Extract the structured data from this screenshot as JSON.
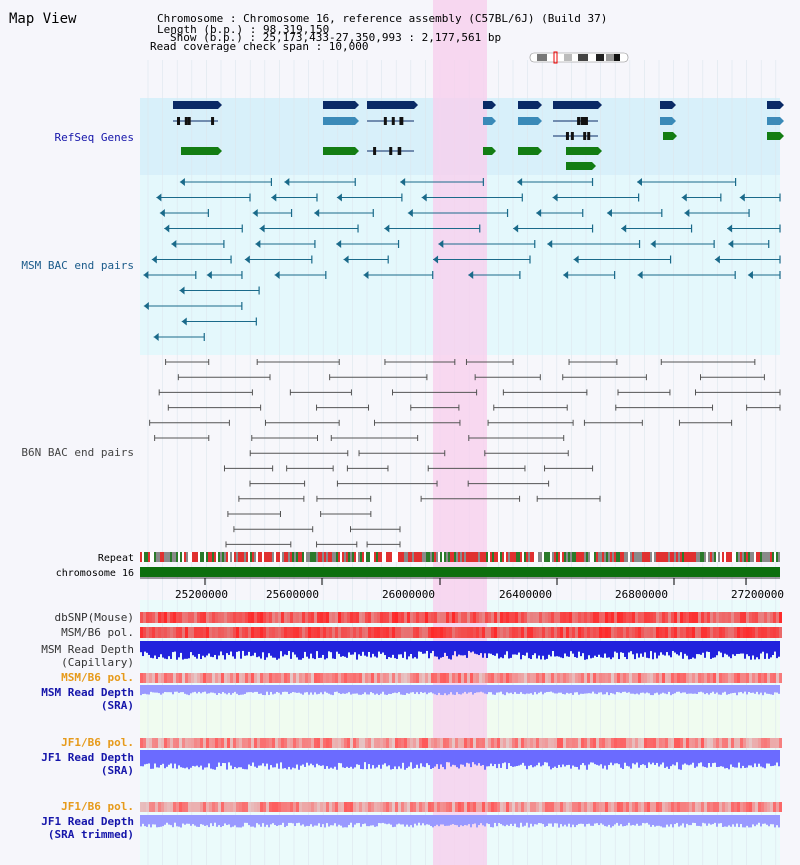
{
  "header": {
    "title": "Map View",
    "chromosome_line": "Chromosome   : Chromosome 16, reference assembly (C57BL/6J) (Build 37)",
    "length_line": "Length (b.p.) : 98,319,150",
    "show_line": "Show (b.p.) : 25,173,433-27,350,993 : 2,177,561 bp",
    "coverage_line": "Read coverage check span : 10,000"
  },
  "tracks": {
    "refseq": "RefSeq Genes",
    "msm_bac": "MSM BAC end pairs",
    "b6n_bac": "B6N BAC end pairs",
    "repeat": "Repeat",
    "chromosome": "chromosome 16",
    "dbsnp": "dbSNP(Mouse)",
    "msm_pol": "MSM/B6 pol.",
    "msm_depth_cap_1": "MSM Read Depth",
    "msm_depth_cap_2": "(Capillary)",
    "msm_pol_2": "MSM/B6 pol.",
    "msm_depth_sra_1": "MSM Read Depth",
    "msm_depth_sra_2": "(SRA)",
    "jf1_pol": "JF1/B6 pol.",
    "jf1_depth_1": "JF1 Read Depth",
    "jf1_depth_2": "(SRA)",
    "jf1_pol_2": "JF1/B6 pol.",
    "jf1_trim_1": "JF1 Read Depth",
    "jf1_trim_2": "(SRA trimmed)"
  },
  "axis": {
    "ticks": [
      "25200000",
      "25600000",
      "26000000",
      "26400000",
      "26800000",
      "27200000"
    ]
  },
  "colors": {
    "refseq_bg": "#d8f0fa",
    "msm_bg": "#e4f8fc",
    "highlight": "#f8d0ee",
    "gene_dark": "#0a2a66",
    "gene_mid": "#3a8ab8",
    "gene_green": "#137d13",
    "msm_line": "#1a6a8a",
    "b6n_line": "#555555",
    "chrom_bar": "#0d6f0d",
    "msm_depth": "#2222dd",
    "sra_depth": "#9999ff",
    "orange_label": "#e69a1a",
    "blue_label": "#1515aa"
  }
}
